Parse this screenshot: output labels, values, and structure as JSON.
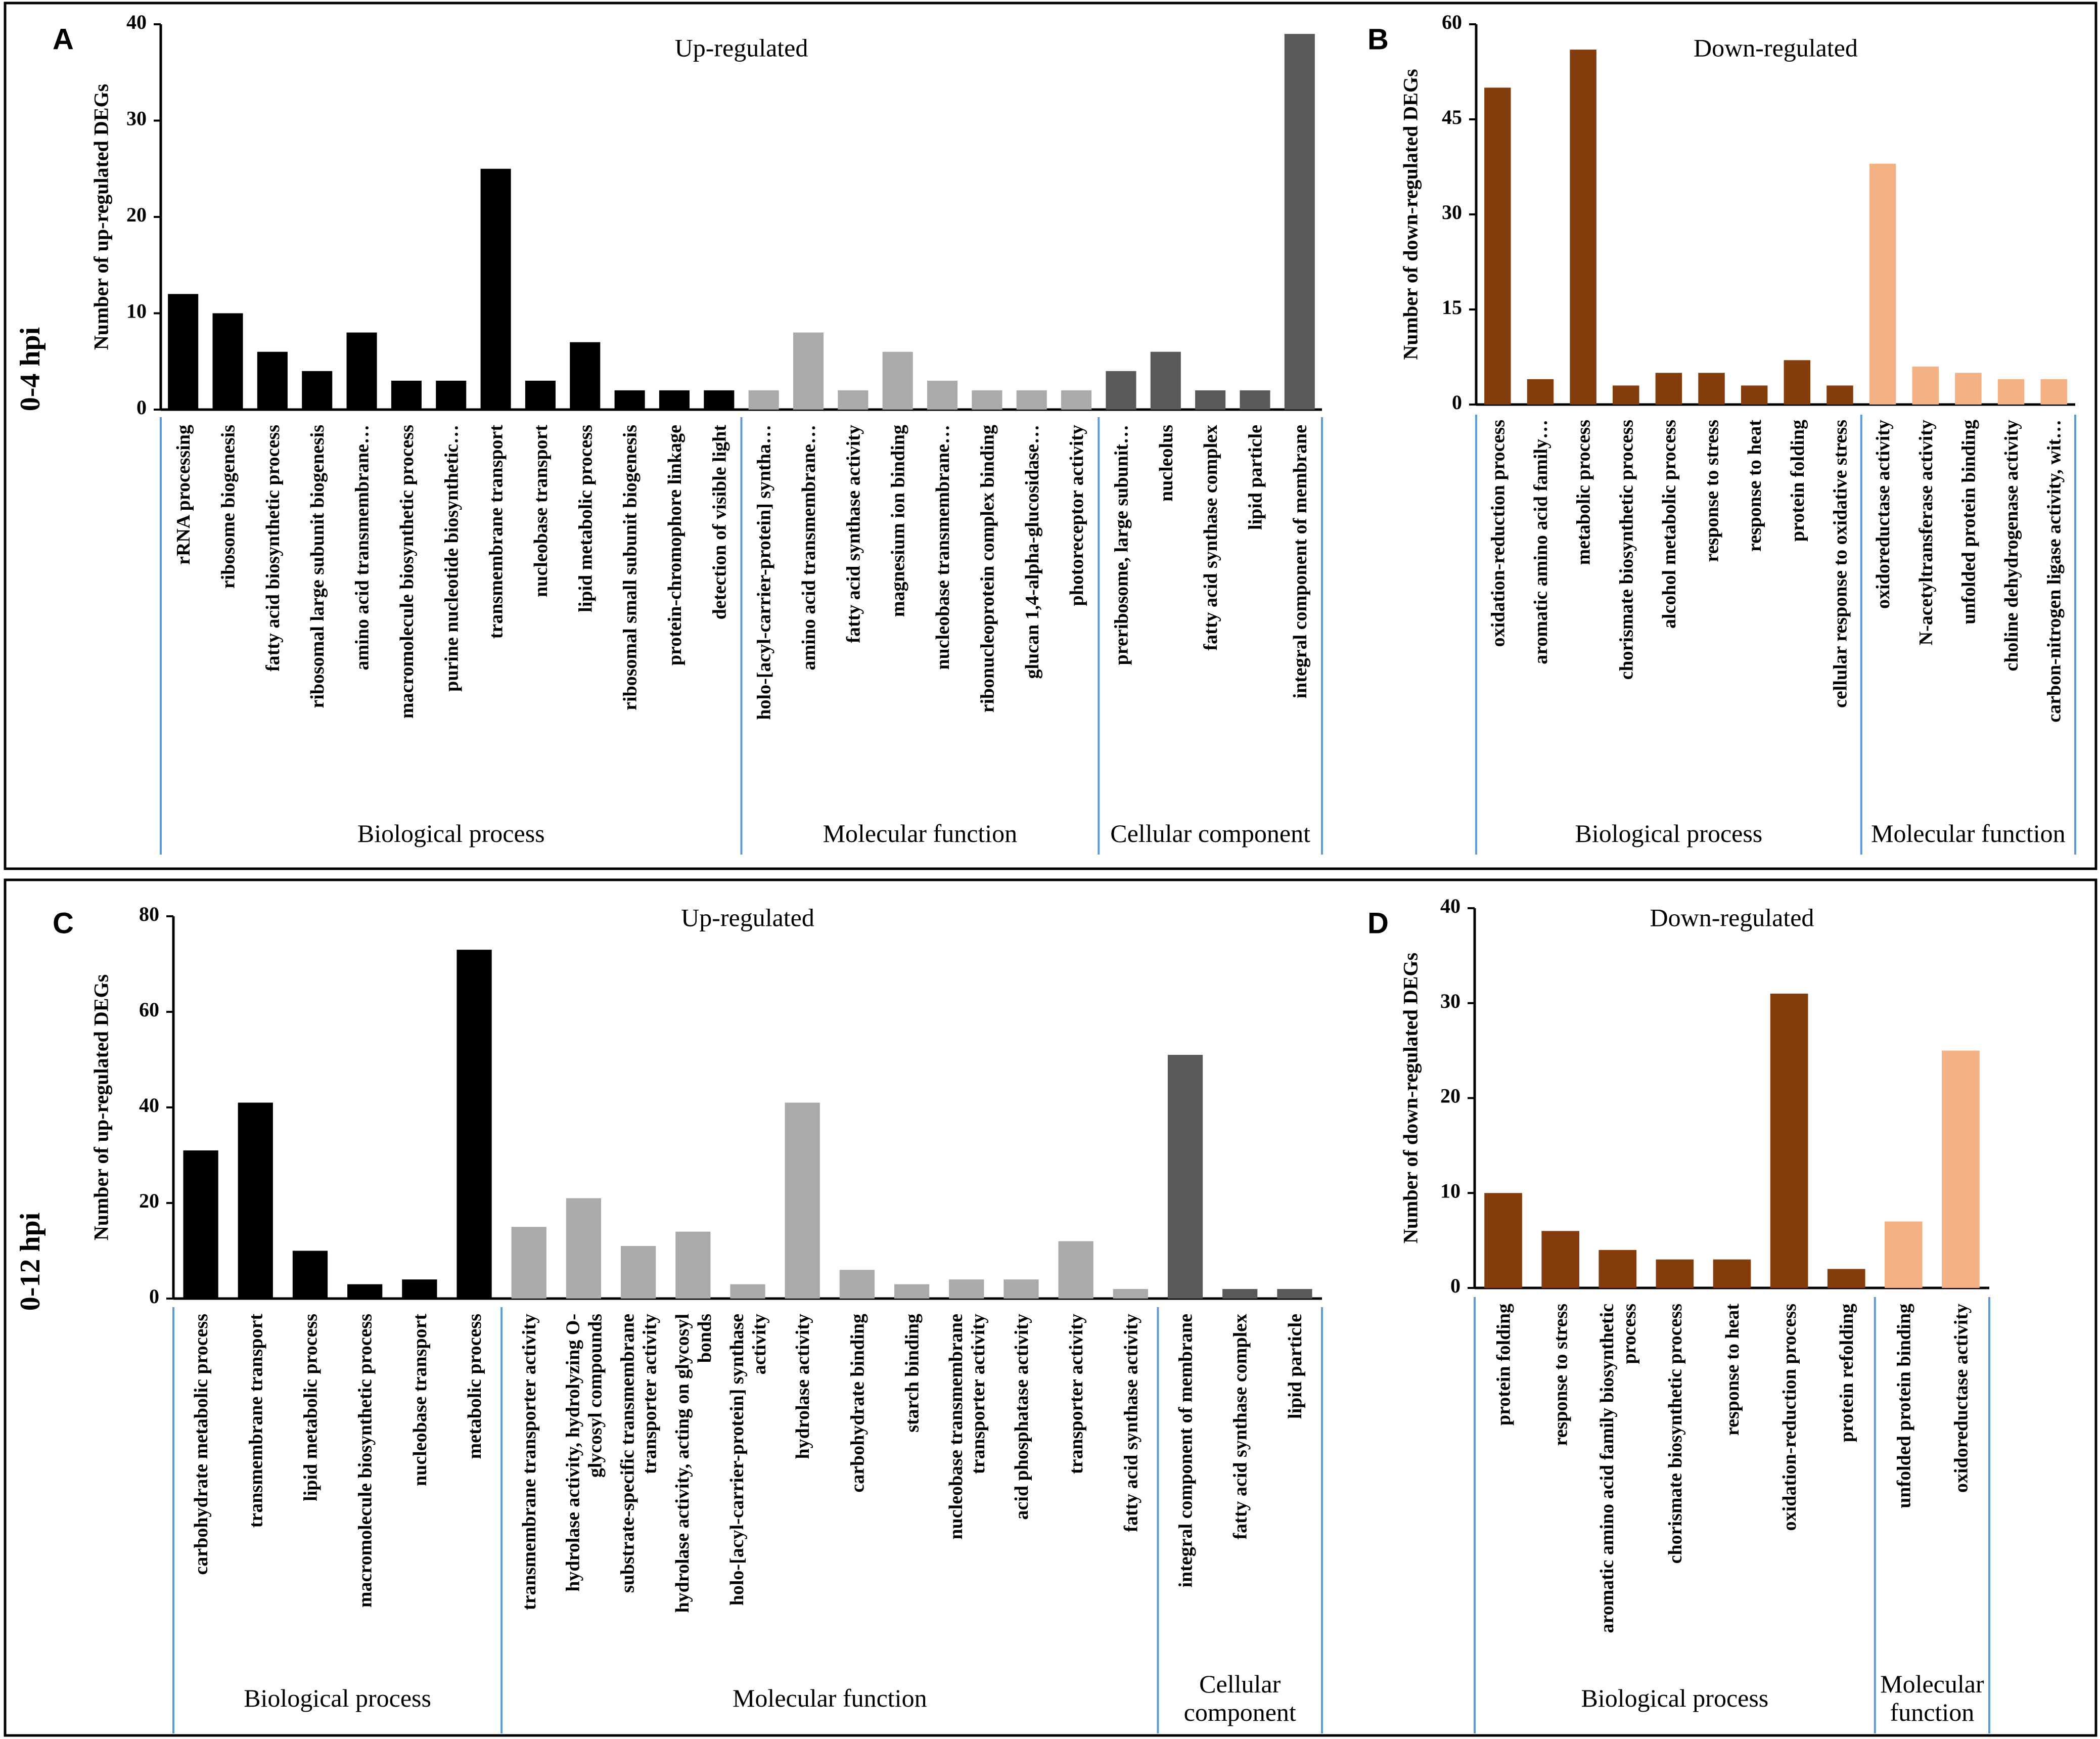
{
  "figure": {
    "row_labels": [
      "0-4 hpi",
      "0-12 hpi"
    ]
  },
  "chart_data": [
    {
      "panel": "A",
      "type": "bar",
      "title": "Up-regulated",
      "ylabel": "Number of up-regulated  DEGs",
      "ylim": [
        0,
        40
      ],
      "yticks": [
        0,
        10,
        20,
        30,
        40
      ],
      "categories": [
        "rRNA processing",
        "ribosome biogenesis",
        "fatty acid biosynthetic process",
        "ribosomal large subunit biogenesis",
        "amino acid transmembrane…",
        "macromolecule biosynthetic process",
        "purine nucleotide biosynthetic…",
        "transmembrane transport",
        "nucleobase transport",
        "lipid metabolic process",
        "ribosomal small subunit biogenesis",
        "protein-chromophore linkage",
        "detection of visible light",
        "holo-[acyl-carrier-protein] syntha…",
        "amino acid transmembrane…",
        "fatty acid synthase activity",
        "magnesium ion binding",
        "nucleobase transmembrane…",
        "ribonucleoprotein complex binding",
        "glucan 1,4-alpha-glucosidase…",
        "photoreceptor activity",
        "preribosome, large subunit…",
        "nucleolus",
        "fatty acid synthase complex",
        "lipid particle",
        "integral component of membrane"
      ],
      "values": [
        12,
        10,
        6,
        4,
        8,
        3,
        3,
        25,
        3,
        7,
        2,
        2,
        2,
        2,
        8,
        2,
        6,
        3,
        2,
        2,
        2,
        4,
        6,
        2,
        2,
        39
      ],
      "groups": [
        {
          "label": "Biological process",
          "count": 13,
          "color": "#000000"
        },
        {
          "label": "Molecular function",
          "count": 8,
          "color": "#ABA9A9"
        },
        {
          "label": "Cellular component",
          "count": 5,
          "color": "#595959"
        }
      ]
    },
    {
      "panel": "B",
      "type": "bar",
      "title": "Down-regulated",
      "ylabel": "Number of down-regulated  DEGs",
      "ylim": [
        0,
        60
      ],
      "yticks": [
        0,
        15,
        30,
        45,
        60
      ],
      "categories": [
        "oxidation-reduction process",
        "aromatic amino acid family…",
        "metabolic process",
        "chorismate biosynthetic process",
        "alcohol metabolic process",
        "response to stress",
        "response to heat",
        "protein folding",
        "cellular response to oxidative stress",
        "oxidoreductase activity",
        "N-acetyltransferase activity",
        "unfolded protein binding",
        "choline dehydrogenase activity",
        "carbon-nitrogen ligase activity, wit…"
      ],
      "values": [
        50,
        4,
        56,
        3,
        5,
        5,
        3,
        7,
        3,
        38,
        6,
        5,
        4,
        4
      ],
      "groups": [
        {
          "label": "Biological process",
          "count": 9,
          "color": "#843C0C"
        },
        {
          "label": "Molecular function",
          "count": 5,
          "color": "#F4B183"
        }
      ]
    },
    {
      "panel": "C",
      "type": "bar",
      "title": "Up-regulated",
      "ylabel": "Number of up-regulated DEGs",
      "ylim": [
        0,
        80
      ],
      "yticks": [
        0,
        20,
        40,
        60,
        80
      ],
      "categories": [
        "carbohydrate metabolic process",
        "transmembrane transport",
        "lipid metabolic process",
        "macromolecule biosynthetic process",
        "nucleobase transport",
        "metabolic process",
        "transmembrane transporter activity",
        "hydrolase activity, hydrolyzing O-\nglycosyl compounds",
        "substrate-specific transmembrane\ntransporter activity",
        "hydrolase activity, acting on glycosyl\nbonds",
        "holo-[acyl-carrier-protein] synthase\nactivity",
        "hydrolase activity",
        "carbohydrate binding",
        "starch binding",
        "nucleobase transmembrane\ntransporter activity",
        "acid phosphatase activity",
        "transporter activity",
        "fatty acid synthase activity",
        "integral component of membrane",
        "fatty acid synthase complex",
        "lipid particle"
      ],
      "values": [
        31,
        41,
        10,
        3,
        4,
        73,
        15,
        21,
        11,
        14,
        3,
        41,
        6,
        3,
        4,
        4,
        12,
        2,
        51,
        2,
        2
      ],
      "groups": [
        {
          "label": "Biological process",
          "count": 6,
          "color": "#000000"
        },
        {
          "label": "Molecular function",
          "count": 12,
          "color": "#ABA9A9"
        },
        {
          "label": "Cellular\ncomponent",
          "count": 3,
          "color": "#595959"
        }
      ]
    },
    {
      "panel": "D",
      "type": "bar",
      "title": "Down-regulated",
      "ylabel": "Number of down-regulated  DEGs",
      "ylim": [
        0,
        40
      ],
      "yticks": [
        0,
        10,
        20,
        30,
        40
      ],
      "categories": [
        "protein folding",
        "response to stress",
        "aromatic amino acid family biosynthetic\nprocess",
        "chorismate biosynthetic process",
        "response to heat",
        "oxidation-reduction process",
        "protein refolding",
        "unfolded protein binding",
        "oxidoreductase activity"
      ],
      "values": [
        10,
        6,
        4,
        3,
        3,
        31,
        2,
        7,
        25
      ],
      "groups": [
        {
          "label": "Biological process",
          "count": 7,
          "color": "#843C0C"
        },
        {
          "label": "Molecular\nfunction",
          "count": 2,
          "color": "#F4B183"
        }
      ]
    }
  ]
}
